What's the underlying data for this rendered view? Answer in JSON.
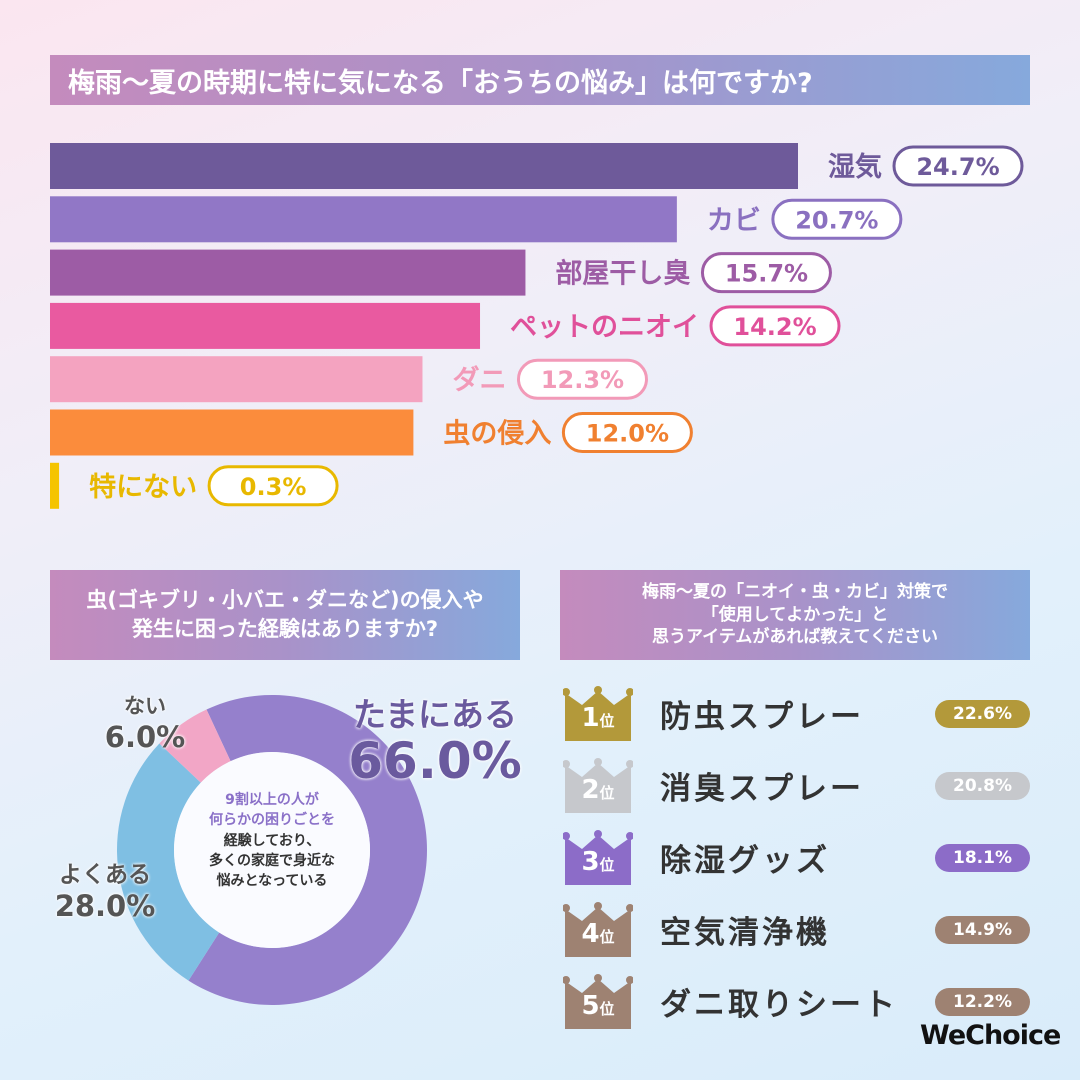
{
  "chart_data": [
    {
      "type": "bar",
      "orientation": "horizontal",
      "title": "梅雨〜夏の時期に特に気になる「おうちの悩み」は何ですか?",
      "categories": [
        "湿気",
        "カビ",
        "部屋干し臭",
        "ペットのニオイ",
        "ダニ",
        "虫の侵入",
        "特にない"
      ],
      "values": [
        24.7,
        20.7,
        15.7,
        14.2,
        12.3,
        12.0,
        0.3
      ],
      "labels": [
        "24.7%",
        "20.7%",
        "15.7%",
        "14.2%",
        "12.3%",
        "12.0%",
        "0.3%"
      ],
      "colors": [
        "#6e5a9a",
        "#9177c6",
        "#9d5ca5",
        "#e95aa0",
        "#f4a3c0",
        "#fb8c3c",
        "#f5c400"
      ],
      "label_colors": [
        "#6e5a9a",
        "#8a70c0",
        "#9d5ca5",
        "#e0509a",
        "#f29ab8",
        "#f08030",
        "#e8b800"
      ]
    },
    {
      "type": "pie",
      "donut": true,
      "title": "虫(ゴキブリ・小バエ・ダニなど)の侵入や発生に困った経験はありますか?",
      "categories": [
        "たまにある",
        "よくある",
        "ない"
      ],
      "values": [
        66.0,
        28.0,
        6.0
      ],
      "labels": [
        "66.0%",
        "28.0%",
        "6.0%"
      ],
      "colors": [
        "#9580cc",
        "#7fbfe3",
        "#f2a6c6"
      ],
      "center_text": [
        "9割以上の人が",
        "何らかの困りごとを",
        "経験しており、",
        "多くの家庭で身近な",
        "悩みとなっている"
      ]
    },
    {
      "type": "table",
      "title_lines": [
        "梅雨〜夏の「ニオイ・虫・カビ」対策で",
        "「使用してよかった」と",
        "思うアイテムがあれば教えてください"
      ],
      "rows": [
        {
          "rank": "1",
          "suffix": "位",
          "item": "防虫スプレー",
          "value": "22.6%",
          "color": "#b3993a"
        },
        {
          "rank": "2",
          "suffix": "位",
          "item": "消臭スプレー",
          "value": "20.8%",
          "color": "#c6c8cc"
        },
        {
          "rank": "3",
          "suffix": "位",
          "item": "除湿グッズ",
          "value": "18.1%",
          "color": "#8c6cc8"
        },
        {
          "rank": "4",
          "suffix": "位",
          "item": "空気清浄機",
          "value": "14.9%",
          "color": "#9e8272"
        },
        {
          "rank": "5",
          "suffix": "位",
          "item": "ダニ取りシート",
          "value": "12.2%",
          "color": "#9e8272"
        }
      ]
    }
  ],
  "logo": "WeChoice"
}
